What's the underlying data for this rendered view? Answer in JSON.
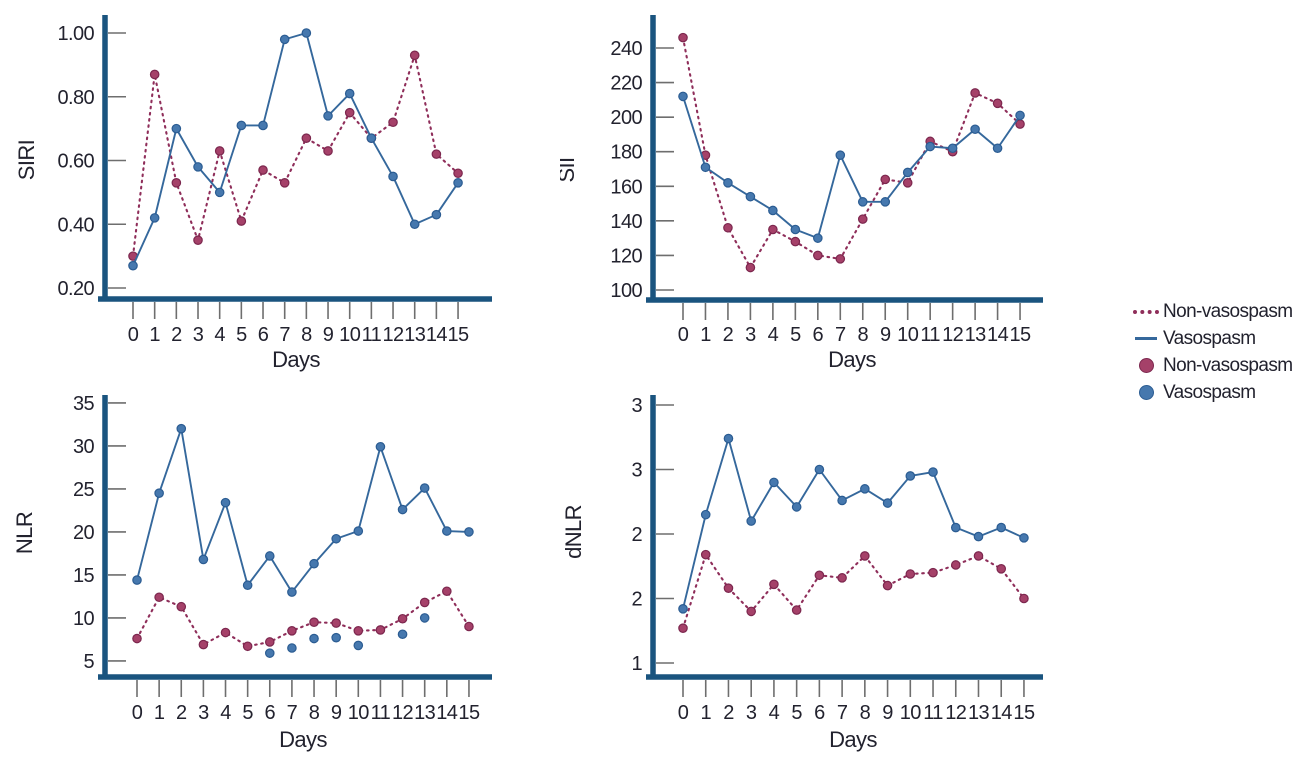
{
  "colors": {
    "vasospasm_line": "#35689C",
    "vasospasm_marker_fill": "#4678AE",
    "vasospasm_marker_stroke": "#2B5C92",
    "non_vasospasm_line": "#8F2E5A",
    "non_vasospasm_marker_fill": "#A54169",
    "non_vasospasm_marker_stroke": "#7C274E",
    "axis": "#1A547F",
    "tick": "#6E6E6E",
    "text": "#22222E"
  },
  "legend": {
    "items": [
      {
        "label": "Non-vasospasm",
        "swatch": "dotted-line",
        "series": "non_vasospasm"
      },
      {
        "label": "Vasospasm",
        "swatch": "solid-line",
        "series": "vasospasm"
      },
      {
        "label": "Non-vasospasm",
        "swatch": "circle",
        "series": "non_vasospasm"
      },
      {
        "label": "Vasospasm",
        "swatch": "circle",
        "series": "vasospasm"
      }
    ]
  },
  "chart_data": [
    {
      "id": "siri",
      "type": "line",
      "ylabel": "SIRI",
      "xlabel": "Days",
      "x": [
        0,
        1,
        2,
        3,
        4,
        5,
        6,
        7,
        8,
        9,
        10,
        11,
        12,
        13,
        14,
        15
      ],
      "xtick_labels": [
        "0",
        "1",
        "2",
        "3",
        "4",
        "5",
        "6",
        "7",
        "8",
        "9",
        "10",
        "11",
        "12",
        "13",
        "14",
        "15"
      ],
      "ytick_labels": [
        "1.00",
        "0.80",
        "0.60",
        "0.40",
        "0.20"
      ],
      "ytick_values": [
        1.0,
        0.8,
        0.6,
        0.4,
        0.2
      ],
      "ylim": [
        0.17,
        1.06
      ],
      "legend_position": "outside-right",
      "grid": false,
      "series": [
        {
          "name": "Non-vasospasm",
          "style": "dotted",
          "color_key": "non_vasospasm",
          "values": [
            0.3,
            0.87,
            0.53,
            0.35,
            0.63,
            0.41,
            0.57,
            0.53,
            0.67,
            0.63,
            0.75,
            0.67,
            0.72,
            0.93,
            0.62,
            0.56
          ]
        },
        {
          "name": "Vasospasm",
          "style": "solid",
          "color_key": "vasospasm",
          "values": [
            0.27,
            0.42,
            0.7,
            0.58,
            0.5,
            0.71,
            0.71,
            0.98,
            1.0,
            0.74,
            0.81,
            0.67,
            0.55,
            0.4,
            0.43,
            0.53
          ]
        }
      ]
    },
    {
      "id": "sii",
      "type": "line",
      "ylabel": "SII",
      "xlabel": "Days",
      "x": [
        0,
        1,
        2,
        3,
        4,
        5,
        6,
        7,
        8,
        9,
        10,
        11,
        12,
        13,
        14,
        15
      ],
      "xtick_labels": [
        "0",
        "1",
        "2",
        "3",
        "4",
        "5",
        "6",
        "7",
        "8",
        "9",
        "10",
        "11",
        "12",
        "13",
        "14",
        "15"
      ],
      "ytick_labels": [
        "240",
        "220",
        "200",
        "180",
        "160",
        "140",
        "120",
        "100"
      ],
      "ytick_values": [
        240,
        220,
        200,
        180,
        160,
        140,
        120,
        100
      ],
      "ylim": [
        92,
        258
      ],
      "legend_position": "outside-right",
      "grid": false,
      "series": [
        {
          "name": "Non-vasospasm",
          "style": "dotted",
          "color_key": "non_vasospasm",
          "values": [
            246,
            178,
            136,
            113,
            135,
            128,
            120,
            118,
            141,
            164,
            162,
            186,
            180,
            214,
            208,
            196
          ]
        },
        {
          "name": "Vasospasm",
          "style": "solid",
          "color_key": "vasospasm",
          "values": [
            212,
            171,
            162,
            154,
            146,
            135,
            130,
            178,
            151,
            151,
            168,
            183,
            182,
            193,
            182,
            201
          ]
        }
      ]
    },
    {
      "id": "nlr",
      "type": "line",
      "ylabel": "NLR",
      "xlabel": "Days",
      "x": [
        0,
        1,
        2,
        3,
        4,
        5,
        6,
        7,
        8,
        9,
        10,
        11,
        12,
        13,
        14,
        15
      ],
      "xtick_labels": [
        "0",
        "1",
        "2",
        "3",
        "4",
        "5",
        "6",
        "7",
        "8",
        "9",
        "10",
        "11",
        "12",
        "13",
        "14",
        "15"
      ],
      "ytick_labels": [
        "35",
        "30",
        "25",
        "20",
        "15",
        "10",
        "5"
      ],
      "ytick_values": [
        35,
        30,
        25,
        20,
        15,
        10,
        5
      ],
      "ylim": [
        2.9,
        36
      ],
      "legend_position": "outside-right",
      "grid": false,
      "series": [
        {
          "name": "Non-vasospasm",
          "style": "dotted",
          "color_key": "non_vasospasm",
          "values": [
            7.6,
            12.4,
            11.3,
            6.9,
            8.3,
            6.7,
            7.2,
            8.5,
            9.5,
            9.4,
            8.5,
            8.6,
            9.9,
            11.8,
            13.1,
            9.0
          ]
        },
        {
          "name": "Vasospasm",
          "style": "solid",
          "color_key": "vasospasm",
          "values": [
            14.4,
            24.5,
            32.0,
            16.8,
            23.4,
            13.8,
            17.2,
            13.0,
            16.3,
            19.2,
            20.1,
            29.9,
            22.6,
            25.1,
            20.1,
            20.0
          ]
        },
        {
          "name": "Vasospasm",
          "style": "points",
          "color_key": "vasospasm",
          "x": [
            6,
            7,
            8,
            9,
            10,
            12,
            13
          ],
          "values": [
            5.9,
            6.5,
            7.6,
            7.7,
            6.8,
            8.1,
            10.0
          ]
        }
      ]
    },
    {
      "id": "dnlr",
      "type": "line",
      "ylabel": "dNLR",
      "xlabel": "Days",
      "x": [
        0,
        1,
        2,
        3,
        4,
        5,
        6,
        7,
        8,
        9,
        10,
        11,
        12,
        13,
        14,
        15
      ],
      "xtick_labels": [
        "0",
        "1",
        "2",
        "3",
        "4",
        "5",
        "6",
        "7",
        "8",
        "9",
        "10",
        "11",
        "12",
        "13",
        "14",
        "15"
      ],
      "ytick_labels": [
        "3",
        "3",
        "2",
        "2",
        "1"
      ],
      "ytick_values": [
        3.0,
        2.5,
        2.0,
        1.5,
        1.0
      ],
      "ylim": [
        0.89,
        3.08
      ],
      "legend_position": "outside-right",
      "grid": false,
      "series": [
        {
          "name": "Non-vasospasm",
          "style": "dotted",
          "color_key": "non_vasospasm",
          "values": [
            1.27,
            1.84,
            1.58,
            1.4,
            1.61,
            1.41,
            1.68,
            1.66,
            1.83,
            1.6,
            1.69,
            1.7,
            1.76,
            1.83,
            1.73,
            1.5
          ]
        },
        {
          "name": "Vasospasm",
          "style": "solid",
          "color_key": "vasospasm",
          "values": [
            1.42,
            2.15,
            2.74,
            2.1,
            2.4,
            2.21,
            2.5,
            2.26,
            2.35,
            2.24,
            2.45,
            2.48,
            2.05,
            1.98,
            2.05,
            1.97
          ]
        }
      ]
    }
  ]
}
